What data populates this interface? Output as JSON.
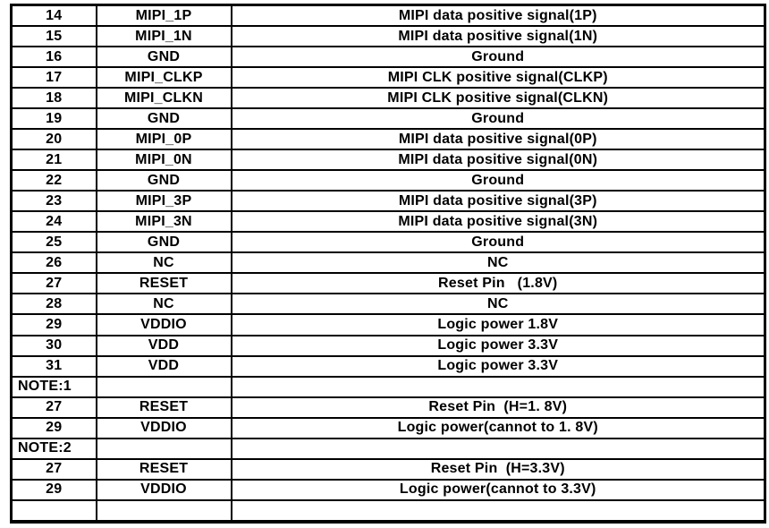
{
  "colors": {
    "background": "#ffffff",
    "text": "#000000",
    "border": "#000000"
  },
  "table": {
    "rows": [
      {
        "pin": "14",
        "name": "MIPI_1P",
        "desc": "MIPI data positive signal(1P)"
      },
      {
        "pin": "15",
        "name": "MIPI_1N",
        "desc": "MIPI data positive signal(1N)"
      },
      {
        "pin": "16",
        "name": "GND",
        "desc": "Ground"
      },
      {
        "pin": "17",
        "name": "MIPI_CLKP",
        "desc": "MIPI CLK positive signal(CLKP)"
      },
      {
        "pin": "18",
        "name": "MIPI_CLKN",
        "desc": "MIPI CLK positive signal(CLKN)"
      },
      {
        "pin": "19",
        "name": "GND",
        "desc": "Ground"
      },
      {
        "pin": "20",
        "name": "MIPI_0P",
        "desc": "MIPI data positive signal(0P)"
      },
      {
        "pin": "21",
        "name": "MIPI_0N",
        "desc": "MIPI data positive signal(0N)"
      },
      {
        "pin": "22",
        "name": "GND",
        "desc": "Ground"
      },
      {
        "pin": "23",
        "name": "MIPI_3P",
        "desc": "MIPI data positive signal(3P)"
      },
      {
        "pin": "24",
        "name": "MIPI_3N",
        "desc": "MIPI data positive signal(3N)"
      },
      {
        "pin": "25",
        "name": "GND",
        "desc": "Ground"
      },
      {
        "pin": "26",
        "name": "NC",
        "desc": "NC"
      },
      {
        "pin": "27",
        "name": "RESET",
        "desc": "Reset Pin   (1.8V)"
      },
      {
        "pin": "28",
        "name": "NC",
        "desc": "NC"
      },
      {
        "pin": "29",
        "name": "VDDIO",
        "desc": "Logic power 1.8V"
      },
      {
        "pin": "30",
        "name": "VDD",
        "desc": "Logic power 3.3V"
      },
      {
        "pin": "31",
        "name": "VDD",
        "desc": "Logic power 3.3V"
      },
      {
        "pin": "NOTE:1",
        "name": "",
        "desc": ""
      },
      {
        "pin": "27",
        "name": "RESET",
        "desc": "Reset Pin  (H=1. 8V)"
      },
      {
        "pin": "29",
        "name": "VDDIO",
        "desc": "Logic power(cannot to 1. 8V)"
      },
      {
        "pin": "NOTE:2",
        "name": "",
        "desc": ""
      },
      {
        "pin": "27",
        "name": "RESET",
        "desc": "Reset Pin  (H=3.3V)"
      },
      {
        "pin": "29",
        "name": "VDDIO",
        "desc": "Logic power(cannot to 3.3V)"
      },
      {
        "pin": "",
        "name": "",
        "desc": ""
      }
    ]
  }
}
